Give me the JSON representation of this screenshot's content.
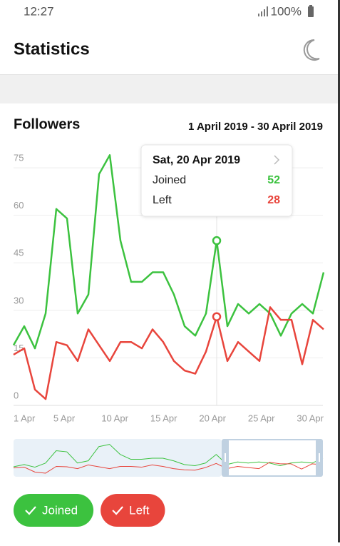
{
  "status_bar": {
    "time": "12:27",
    "battery": "100%"
  },
  "header": {
    "title": "Statistics"
  },
  "chart_data": {
    "type": "line",
    "title": "Followers",
    "subtitle": "1 April 2019 - 30 April 2019",
    "categories": [
      "1 Apr",
      null,
      null,
      null,
      "5 Apr",
      null,
      null,
      null,
      null,
      "10 Apr",
      null,
      null,
      null,
      null,
      "15 Apr",
      null,
      null,
      null,
      null,
      "20 Apr",
      null,
      null,
      null,
      null,
      "25 Apr",
      null,
      null,
      null,
      null,
      "30 Apr"
    ],
    "series": [
      {
        "name": "Joined",
        "color": "#3cc23f",
        "values": [
          19,
          25,
          18,
          29,
          62,
          59,
          29,
          35,
          73,
          79,
          52,
          39,
          39,
          42,
          42,
          35,
          25,
          22,
          29,
          52,
          25,
          32,
          29,
          32,
          29,
          22,
          29,
          32,
          29,
          42
        ]
      },
      {
        "name": "Left",
        "color": "#e8453c",
        "values": [
          16,
          18,
          5,
          2,
          20,
          19,
          14,
          24,
          19,
          14,
          20,
          20,
          18,
          24,
          20,
          14,
          11,
          10,
          17,
          28,
          14,
          20,
          17,
          14,
          31,
          27,
          27,
          13,
          27,
          24
        ]
      }
    ],
    "ylim": [
      0,
      82
    ],
    "yticks": [
      0,
      15,
      30,
      45,
      60,
      75
    ],
    "grid": true,
    "tooltip": {
      "title": "Sat, 20 Apr 2019"
    }
  }
}
